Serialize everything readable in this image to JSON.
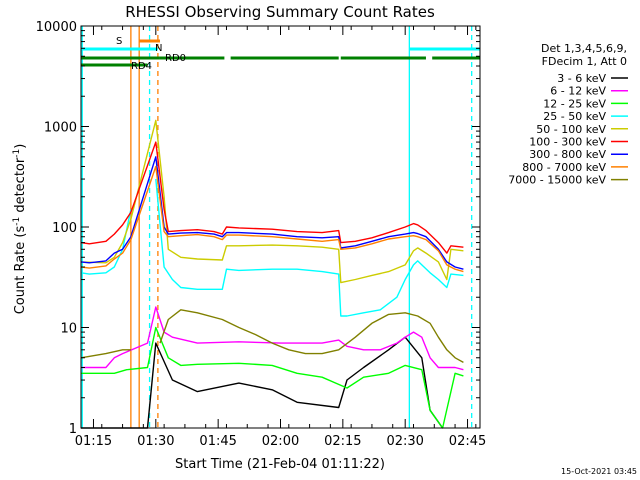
{
  "chart_data": {
    "type": "line",
    "title": "RHESSI Observing Summary Count Rates",
    "xlabel": "Start Time (21-Feb-04 01:11:22)",
    "ylabel": "Count Rate (s⁻¹ detector⁻¹)",
    "ylabel_main": "Count Rate (s",
    "ylabel_sup1": "-1",
    "ylabel_mid": " detector",
    "ylabel_sup2": "-1",
    "ylabel_end": ")",
    "yscale": "log",
    "ylim": [
      1,
      10000
    ],
    "xlim_minutes": [
      72,
      168
    ],
    "x_ticks": [
      {
        "min": 75,
        "label": "01:15"
      },
      {
        "min": 90,
        "label": "01:30"
      },
      {
        "min": 105,
        "label": "01:45"
      },
      {
        "min": 120,
        "label": "02:00"
      },
      {
        "min": 135,
        "label": "02:15"
      },
      {
        "min": 150,
        "label": "02:30"
      },
      {
        "min": 165,
        "label": "02:45"
      }
    ],
    "y_ticks": [
      {
        "value": 1,
        "label": "1"
      },
      {
        "value": 10,
        "label": "10"
      },
      {
        "value": 100,
        "label": "100"
      },
      {
        "value": 1000,
        "label": "1000"
      },
      {
        "value": 10000,
        "label": "10000"
      }
    ],
    "legend_header": [
      "Det 1,3,4,5,6,9,",
      "FDecim 1, Att 0"
    ],
    "legend_placement": "right",
    "series": [
      {
        "name": "3 - 6 keV",
        "color": "#000000",
        "points": [
          [
            72,
            1
          ],
          [
            88,
            1
          ],
          [
            90,
            7
          ],
          [
            94,
            3
          ],
          [
            100,
            2.3
          ],
          [
            110,
            2.8
          ],
          [
            118,
            2.4
          ],
          [
            124,
            1.8
          ],
          [
            134,
            1.6
          ],
          [
            136,
            3
          ],
          [
            140,
            4
          ],
          [
            146,
            6
          ],
          [
            150,
            8
          ],
          [
            154,
            5
          ],
          [
            156,
            1.5
          ],
          [
            159,
            1
          ]
        ]
      },
      {
        "name": "6 - 12 keV",
        "color": "#ff00ff",
        "points": [
          [
            72,
            4
          ],
          [
            78,
            4
          ],
          [
            80,
            5
          ],
          [
            82,
            5.5
          ],
          [
            88,
            7
          ],
          [
            90,
            16
          ],
          [
            92,
            9
          ],
          [
            94,
            8
          ],
          [
            100,
            7
          ],
          [
            110,
            7.2
          ],
          [
            120,
            7
          ],
          [
            130,
            7
          ],
          [
            134,
            7.5
          ],
          [
            136,
            6.5
          ],
          [
            140,
            6
          ],
          [
            144,
            6
          ],
          [
            148,
            7
          ],
          [
            150,
            8
          ],
          [
            152,
            9
          ],
          [
            154,
            8
          ],
          [
            156,
            5
          ],
          [
            158,
            4
          ],
          [
            162,
            4
          ],
          [
            164,
            3.8
          ]
        ]
      },
      {
        "name": "12 - 25 keV",
        "color": "#00ff00",
        "points": [
          [
            72,
            3.5
          ],
          [
            80,
            3.5
          ],
          [
            83,
            3.8
          ],
          [
            88,
            4
          ],
          [
            90,
            10
          ],
          [
            93,
            5
          ],
          [
            96,
            4.2
          ],
          [
            100,
            4.3
          ],
          [
            110,
            4.4
          ],
          [
            118,
            4.2
          ],
          [
            124,
            3.5
          ],
          [
            130,
            3.2
          ],
          [
            136,
            2.5
          ],
          [
            140,
            3.2
          ],
          [
            146,
            3.5
          ],
          [
            150,
            4.2
          ],
          [
            154,
            3.8
          ],
          [
            156,
            1.5
          ],
          [
            159,
            1
          ],
          [
            162,
            3.5
          ],
          [
            164,
            3.3
          ]
        ]
      },
      {
        "name": "25 - 50 keV",
        "color": "#00ffff",
        "points": [
          [
            72,
            35
          ],
          [
            74,
            34
          ],
          [
            78,
            35
          ],
          [
            80,
            40
          ],
          [
            82,
            60
          ],
          [
            84,
            150
          ],
          [
            88,
            null
          ],
          [
            90,
            300
          ],
          [
            92,
            40
          ],
          [
            94,
            30
          ],
          [
            96,
            25
          ],
          [
            100,
            24
          ],
          [
            106,
            24
          ],
          [
            107,
            38
          ],
          [
            110,
            37
          ],
          [
            118,
            38
          ],
          [
            124,
            38
          ],
          [
            130,
            36
          ],
          [
            134,
            34
          ],
          [
            134.5,
            13
          ],
          [
            136,
            13
          ],
          [
            140,
            14
          ],
          [
            144,
            15
          ],
          [
            148,
            20
          ],
          [
            150,
            30
          ],
          [
            152,
            42
          ],
          [
            153,
            46
          ],
          [
            154,
            42
          ],
          [
            156,
            35
          ],
          [
            158,
            30
          ],
          [
            160,
            25
          ],
          [
            161,
            34
          ],
          [
            164,
            33
          ]
        ]
      },
      {
        "name": "50 - 100 keV",
        "color": "#cccc00",
        "points": [
          [
            72,
            45
          ],
          [
            78,
            44
          ],
          [
            80,
            50
          ],
          [
            82,
            70
          ],
          [
            84,
            120
          ],
          [
            90,
            1150
          ],
          [
            92,
            200
          ],
          [
            93,
            60
          ],
          [
            96,
            50
          ],
          [
            100,
            48
          ],
          [
            106,
            47
          ],
          [
            107,
            65
          ],
          [
            110,
            65
          ],
          [
            118,
            66
          ],
          [
            124,
            65
          ],
          [
            130,
            63
          ],
          [
            134,
            60
          ],
          [
            134.5,
            28
          ],
          [
            138,
            30
          ],
          [
            142,
            33
          ],
          [
            146,
            36
          ],
          [
            150,
            42
          ],
          [
            152,
            58
          ],
          [
            153,
            62
          ],
          [
            155,
            55
          ],
          [
            158,
            45
          ],
          [
            160,
            30
          ],
          [
            161,
            60
          ],
          [
            164,
            58
          ]
        ]
      },
      {
        "name": "100 - 300 keV",
        "color": "#ff0000",
        "points": [
          [
            72,
            70
          ],
          [
            74,
            68
          ],
          [
            78,
            72
          ],
          [
            80,
            85
          ],
          [
            82,
            105
          ],
          [
            84,
            140
          ],
          [
            90,
            700
          ],
          [
            92,
            150
          ],
          [
            93,
            90
          ],
          [
            96,
            92
          ],
          [
            100,
            94
          ],
          [
            104,
            90
          ],
          [
            106,
            85
          ],
          [
            107,
            100
          ],
          [
            110,
            98
          ],
          [
            118,
            95
          ],
          [
            124,
            90
          ],
          [
            130,
            88
          ],
          [
            134,
            92
          ],
          [
            134.5,
            70
          ],
          [
            138,
            72
          ],
          [
            142,
            78
          ],
          [
            146,
            88
          ],
          [
            150,
            100
          ],
          [
            152,
            108
          ],
          [
            153,
            105
          ],
          [
            155,
            92
          ],
          [
            158,
            70
          ],
          [
            160,
            55
          ],
          [
            161,
            65
          ],
          [
            164,
            63
          ]
        ]
      },
      {
        "name": "300 - 800 keV",
        "color": "#0000ff",
        "points": [
          [
            72,
            45
          ],
          [
            74,
            44
          ],
          [
            78,
            46
          ],
          [
            80,
            55
          ],
          [
            82,
            60
          ],
          [
            84,
            80
          ],
          [
            90,
            500
          ],
          [
            92,
            100
          ],
          [
            93,
            85
          ],
          [
            96,
            87
          ],
          [
            100,
            88
          ],
          [
            104,
            85
          ],
          [
            106,
            80
          ],
          [
            107,
            88
          ],
          [
            110,
            88
          ],
          [
            118,
            85
          ],
          [
            124,
            80
          ],
          [
            130,
            78
          ],
          [
            134,
            80
          ],
          [
            134.5,
            62
          ],
          [
            138,
            65
          ],
          [
            142,
            72
          ],
          [
            146,
            80
          ],
          [
            150,
            85
          ],
          [
            152,
            88
          ],
          [
            153,
            86
          ],
          [
            155,
            80
          ],
          [
            158,
            60
          ],
          [
            160,
            45
          ],
          [
            162,
            40
          ],
          [
            164,
            38
          ]
        ]
      },
      {
        "name": "800 - 7000 keV",
        "color": "#ff8000",
        "points": [
          [
            72,
            40
          ],
          [
            74,
            39
          ],
          [
            78,
            41
          ],
          [
            80,
            48
          ],
          [
            82,
            55
          ],
          [
            84,
            75
          ],
          [
            90,
            400
          ],
          [
            92,
            90
          ],
          [
            93,
            80
          ],
          [
            96,
            82
          ],
          [
            100,
            84
          ],
          [
            104,
            80
          ],
          [
            106,
            75
          ],
          [
            107,
            83
          ],
          [
            110,
            83
          ],
          [
            118,
            80
          ],
          [
            124,
            76
          ],
          [
            130,
            72
          ],
          [
            134,
            75
          ],
          [
            134.5,
            60
          ],
          [
            138,
            62
          ],
          [
            142,
            68
          ],
          [
            146,
            76
          ],
          [
            150,
            80
          ],
          [
            152,
            82
          ],
          [
            153,
            80
          ],
          [
            155,
            75
          ],
          [
            158,
            58
          ],
          [
            160,
            42
          ],
          [
            162,
            38
          ],
          [
            164,
            36
          ]
        ]
      },
      {
        "name": "7000 - 15000 keV",
        "color": "#808000",
        "points": [
          [
            72,
            5
          ],
          [
            78,
            5.5
          ],
          [
            82,
            6
          ],
          [
            84,
            6
          ],
          [
            88,
            null
          ],
          [
            91,
            7
          ],
          [
            93,
            12
          ],
          [
            96,
            15
          ],
          [
            100,
            14
          ],
          [
            106,
            12
          ],
          [
            110,
            10
          ],
          [
            114,
            8.5
          ],
          [
            118,
            7
          ],
          [
            122,
            6
          ],
          [
            126,
            5.5
          ],
          [
            130,
            5.5
          ],
          [
            134,
            6
          ],
          [
            138,
            8
          ],
          [
            142,
            11
          ],
          [
            146,
            13.5
          ],
          [
            150,
            14
          ],
          [
            153,
            13
          ],
          [
            156,
            11
          ],
          [
            158,
            8
          ],
          [
            160,
            6
          ],
          [
            162,
            5
          ],
          [
            164,
            4.5
          ]
        ]
      }
    ],
    "annotations": [
      {
        "text": "S",
        "color": "#ff8000"
      },
      {
        "text": "N",
        "color": "#00cccc"
      },
      {
        "text": "RD0",
        "color": "#008000"
      },
      {
        "text": "RD4",
        "color": "#008000"
      }
    ],
    "flag_bars": {
      "S": {
        "color": "#ff8000",
        "ranges": [
          [
            86,
            91
          ]
        ]
      },
      "N": {
        "color": "#00ffff",
        "ranges": [
          [
            72,
            90.5
          ],
          [
            151,
            168
          ]
        ]
      },
      "RD": {
        "color": "#008000",
        "ranges": [
          [
            72,
            91
          ],
          [
            91,
            106.5
          ],
          [
            108,
            134
          ],
          [
            134.5,
            155
          ],
          [
            156.5,
            168
          ]
        ]
      },
      "RD2": {
        "color": "#008000",
        "ranges": [
          [
            72,
            88
          ]
        ]
      }
    },
    "vlines": [
      {
        "min": 72.3,
        "color": "#00ffff",
        "dashed": false
      },
      {
        "min": 84,
        "color": "#ff8000",
        "dashed": false
      },
      {
        "min": 86,
        "color": "#ff8000",
        "dashed": false
      },
      {
        "min": 88.5,
        "color": "#00ffff",
        "dashed": true
      },
      {
        "min": 90.5,
        "color": "#ff8000",
        "dashed": true
      },
      {
        "min": 151,
        "color": "#00ffff",
        "dashed": false
      },
      {
        "min": 166,
        "color": "#00ffff",
        "dashed": true
      }
    ],
    "timestamp": "15-Oct-2021 03:45"
  }
}
